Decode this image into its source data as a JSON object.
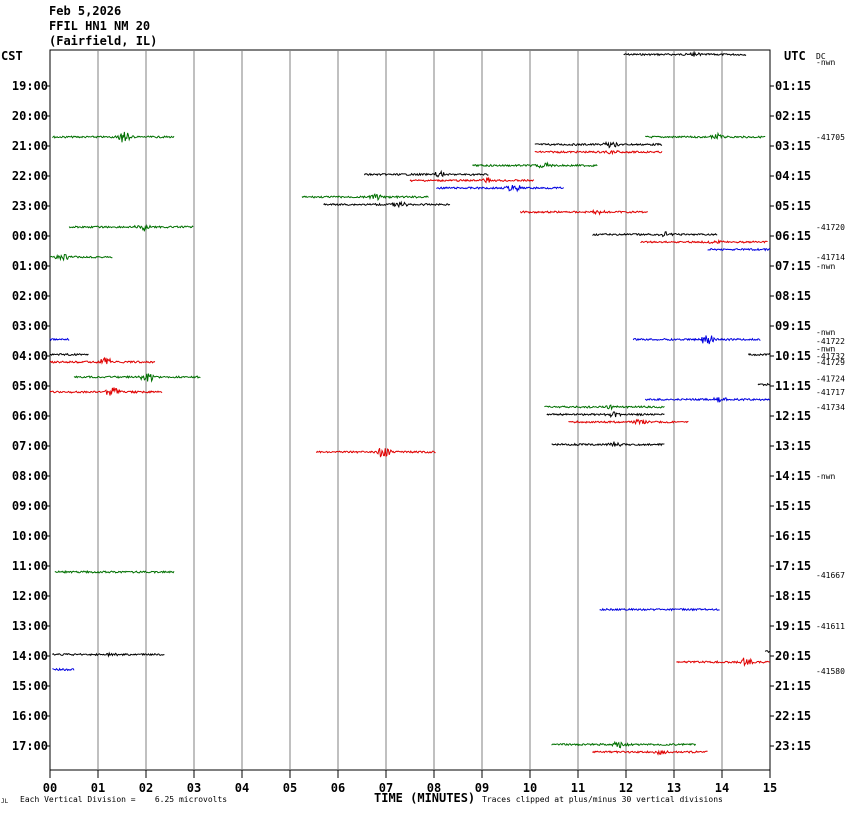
{
  "header": {
    "line1": "Feb 5,2026",
    "line2": "FFIL HN1 NM 20",
    "line3": "(Fairfield, IL)"
  },
  "corner_labels": {
    "left": "CST",
    "right": "UTC",
    "dc": "DC"
  },
  "footer": {
    "left_mark": "JL",
    "scale_note": "Each Vertical Division =    6.25 microvolts",
    "xlabel": "TIME (MINUTES)",
    "clip_note": "Traces clipped at plus/minus 30 vertical divisions"
  },
  "colors": {
    "black": "#000000",
    "red": "#e00000",
    "blue": "#0000e0",
    "green": "#007000",
    "grid": "#808080"
  },
  "chart_data": {
    "type": "line",
    "title": "FFIL HN1 NM 20",
    "xlabel": "TIME (MINUTES)",
    "xlim": [
      0,
      15
    ],
    "x_ticks": [
      "00",
      "01",
      "02",
      "03",
      "04",
      "05",
      "06",
      "07",
      "08",
      "09",
      "10",
      "11",
      "12",
      "13",
      "14",
      "15"
    ],
    "cst_labels": [
      "19:00",
      "20:00",
      "21:00",
      "22:00",
      "23:00",
      "00:00",
      "01:00",
      "02:00",
      "03:00",
      "04:00",
      "05:00",
      "06:00",
      "07:00",
      "08:00",
      "09:00",
      "10:00",
      "11:00",
      "12:00",
      "13:00",
      "14:00",
      "15:00",
      "16:00",
      "17:00"
    ],
    "utc_labels": [
      "01:15",
      "02:15",
      "03:15",
      "04:15",
      "05:15",
      "06:15",
      "07:15",
      "08:15",
      "09:15",
      "10:15",
      "11:15",
      "12:15",
      "13:15",
      "14:15",
      "15:15",
      "16:15",
      "17:15",
      "18:15",
      "19:15",
      "20:15",
      "21:15",
      "22:15",
      "23:15"
    ],
    "right_annotations": [
      {
        "row": -1,
        "text": "DC"
      },
      {
        "row": -0.8,
        "text": "-nwn"
      },
      {
        "row": 1.7,
        "text": "-41705"
      },
      {
        "row": 4.7,
        "text": "-41720"
      },
      {
        "row": 5.7,
        "text": "-41714"
      },
      {
        "row": 6.0,
        "text": "-nwn"
      },
      {
        "row": 8.2,
        "text": "-nwn"
      },
      {
        "row": 8.5,
        "text": "-41722"
      },
      {
        "row": 8.75,
        "text": "-nwn"
      },
      {
        "row": 9.0,
        "text": "-41732"
      },
      {
        "row": 9.2,
        "text": "-41729"
      },
      {
        "row": 9.75,
        "text": "-41724"
      },
      {
        "row": 10.2,
        "text": "-41717"
      },
      {
        "row": 10.7,
        "text": "-41734"
      },
      {
        "row": 13.0,
        "text": "-nwn"
      },
      {
        "row": 16.3,
        "text": "-41667"
      },
      {
        "row": 18.0,
        "text": "-41611"
      },
      {
        "row": 19.5,
        "text": "-41580"
      }
    ],
    "segments": [
      {
        "color": "black",
        "row": -1.05,
        "x0": 11.95,
        "x1": 14.5,
        "spike": 13.4,
        "amp": 2
      },
      {
        "color": "green",
        "row": 1.7,
        "x0": 0.05,
        "x1": 2.6,
        "spike": 1.55,
        "amp": 7
      },
      {
        "color": "green",
        "row": 1.7,
        "x0": 12.4,
        "x1": 14.9,
        "spike": 13.9,
        "amp": 3
      },
      {
        "color": "black",
        "row": 1.95,
        "x0": 10.1,
        "x1": 12.75,
        "spike": 11.7,
        "amp": 5
      },
      {
        "color": "red",
        "row": 2.2,
        "x0": 10.1,
        "x1": 12.75,
        "spike": 11.7,
        "amp": 2
      },
      {
        "color": "green",
        "row": 2.65,
        "x0": 8.8,
        "x1": 11.4,
        "spike": 10.3,
        "amp": 3
      },
      {
        "color": "black",
        "row": 2.95,
        "x0": 6.55,
        "x1": 9.15,
        "spike": 8.1,
        "amp": 3
      },
      {
        "color": "red",
        "row": 3.15,
        "x0": 7.5,
        "x1": 10.1,
        "spike": 9.05,
        "amp": 3
      },
      {
        "color": "blue",
        "row": 3.4,
        "x0": 8.05,
        "x1": 10.7,
        "spike": 9.65,
        "amp": 5
      },
      {
        "color": "green",
        "row": 3.7,
        "x0": 5.25,
        "x1": 7.9,
        "spike": 6.8,
        "amp": 3
      },
      {
        "color": "black",
        "row": 3.95,
        "x0": 5.7,
        "x1": 8.35,
        "spike": 7.3,
        "amp": 3
      },
      {
        "color": "red",
        "row": 4.2,
        "x0": 9.8,
        "x1": 12.45,
        "spike": 11.4,
        "amp": 2
      },
      {
        "color": "green",
        "row": 4.7,
        "x0": 0.4,
        "x1": 3.0,
        "spike": 1.95,
        "amp": 5
      },
      {
        "color": "black",
        "row": 4.95,
        "x0": 11.3,
        "x1": 13.9,
        "spike": 12.85,
        "amp": 3
      },
      {
        "color": "red",
        "row": 5.2,
        "x0": 12.3,
        "x1": 14.95,
        "spike": 13.9,
        "amp": 2
      },
      {
        "color": "blue",
        "row": 5.45,
        "x0": 13.7,
        "x1": 15.0,
        "spike": null,
        "amp": 0
      },
      {
        "color": "green",
        "row": 5.7,
        "x0": 0.0,
        "x1": 1.3,
        "spike": 0.25,
        "amp": 4
      },
      {
        "color": "blue",
        "row": 8.45,
        "x0": 0.0,
        "x1": 0.4,
        "spike": null,
        "amp": 0
      },
      {
        "color": "blue",
        "row": 8.45,
        "x0": 12.15,
        "x1": 14.8,
        "spike": 13.7,
        "amp": 6
      },
      {
        "color": "black",
        "row": 8.95,
        "x0": 0.0,
        "x1": 0.8,
        "spike": null,
        "amp": 0
      },
      {
        "color": "black",
        "row": 8.95,
        "x0": 14.55,
        "x1": 15.0,
        "spike": null,
        "amp": 0
      },
      {
        "color": "red",
        "row": 9.2,
        "x0": 0.0,
        "x1": 2.2,
        "spike": 1.15,
        "amp": 6
      },
      {
        "color": "green",
        "row": 9.7,
        "x0": 0.5,
        "x1": 3.15,
        "spike": 2.05,
        "amp": 6
      },
      {
        "color": "black",
        "row": 9.95,
        "x0": 14.75,
        "x1": 15.0,
        "spike": null,
        "amp": 0
      },
      {
        "color": "red",
        "row": 10.2,
        "x0": 0.0,
        "x1": 2.35,
        "spike": 1.3,
        "amp": 5
      },
      {
        "color": "blue",
        "row": 10.45,
        "x0": 12.4,
        "x1": 15.0,
        "spike": 13.95,
        "amp": 3
      },
      {
        "color": "green",
        "row": 10.7,
        "x0": 10.3,
        "x1": 12.8,
        "spike": 11.7,
        "amp": 2
      },
      {
        "color": "black",
        "row": 10.95,
        "x0": 10.35,
        "x1": 12.8,
        "spike": 11.75,
        "amp": 3
      },
      {
        "color": "red",
        "row": 11.2,
        "x0": 10.8,
        "x1": 13.3,
        "spike": 12.3,
        "amp": 3
      },
      {
        "color": "black",
        "row": 11.95,
        "x0": 10.45,
        "x1": 12.8,
        "spike": 11.75,
        "amp": 3
      },
      {
        "color": "red",
        "row": 12.2,
        "x0": 5.55,
        "x1": 8.05,
        "spike": 6.95,
        "amp": 6
      },
      {
        "color": "green",
        "row": 16.2,
        "x0": 0.1,
        "x1": 2.6,
        "spike": null,
        "amp": 0
      },
      {
        "color": "blue",
        "row": 17.45,
        "x0": 11.45,
        "x1": 13.95,
        "spike": null,
        "amp": 0
      },
      {
        "color": "black",
        "row": 18.95,
        "x0": 0.05,
        "x1": 2.4,
        "spike": 1.3,
        "amp": 2
      },
      {
        "color": "black",
        "row": 18.85,
        "x0": 14.9,
        "x1": 15.0,
        "spike": null,
        "amp": 0
      },
      {
        "color": "red",
        "row": 19.2,
        "x0": 13.05,
        "x1": 15.0,
        "spike": 14.5,
        "amp": 5
      },
      {
        "color": "blue",
        "row": 19.45,
        "x0": 0.05,
        "x1": 0.5,
        "spike": null,
        "amp": 0
      },
      {
        "color": "green",
        "row": 21.95,
        "x0": 10.45,
        "x1": 13.45,
        "spike": 11.9,
        "amp": 5
      },
      {
        "color": "red",
        "row": 22.2,
        "x0": 11.3,
        "x1": 13.7,
        "spike": 12.7,
        "amp": 3
      }
    ]
  }
}
